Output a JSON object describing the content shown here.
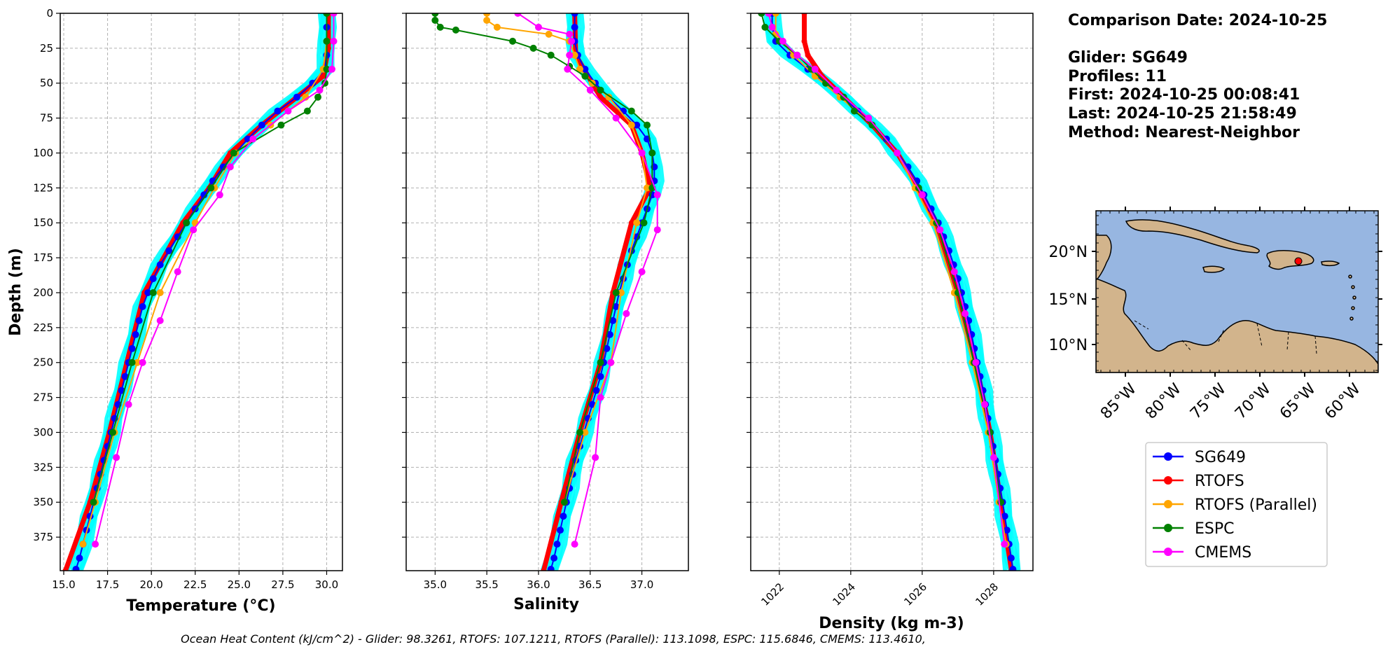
{
  "info": {
    "comparison_date": "Comparison Date: 2024-10-25",
    "glider": "Glider: SG649",
    "profiles": "Profiles: 11",
    "first": "First: 2024-10-25 00:08:41",
    "last": "Last: 2024-10-25 21:58:49",
    "method": "Method: Nearest-Neighbor"
  },
  "footer": "Ocean Heat Content (kJ/cm^2) - Glider: 98.3261,  RTOFS: 107.1211,  RTOFS (Parallel): 113.1098,  ESPC: 115.6846,  CMEMS: 113.4610,",
  "colors": {
    "SG649": "#0000ff",
    "RTOFS": "#ff0000",
    "RTOFS (Parallel)": "#ffa500",
    "ESPC": "#008000",
    "CMEMS": "#ff00ff",
    "raw_profiles": "#00ffff",
    "ocean": "#97b6e1",
    "land": "#d2b48c"
  },
  "legend": [
    "SG649",
    "RTOFS",
    "RTOFS (Parallel)",
    "ESPC",
    "CMEMS"
  ],
  "map": {
    "lat_labels": [
      "20°N",
      "15°N",
      "10°N"
    ],
    "lon_labels": [
      "85°W",
      "80°W",
      "75°W",
      "70°W",
      "65°W",
      "60°W"
    ],
    "glider_position": {
      "lon": -66.9,
      "lat": 18.9
    }
  },
  "chart_data": [
    {
      "type": "line",
      "xlabel": "Temperature (°C)",
      "ylabel": "Depth (m)",
      "xlim": [
        14.8,
        30.9
      ],
      "ylim": [
        399,
        0
      ],
      "grid": true,
      "xticks": [
        "15.0",
        "17.5",
        "20.0",
        "22.5",
        "25.0",
        "27.5",
        "30.0"
      ],
      "yticks": [
        "0",
        "25",
        "50",
        "75",
        "100",
        "125",
        "150",
        "175",
        "200",
        "225",
        "250",
        "275",
        "300",
        "325",
        "350",
        "375"
      ],
      "series": [
        {
          "name": "SG649",
          "depth": [
            0,
            10,
            20,
            30,
            40,
            50,
            60,
            70,
            80,
            90,
            100,
            110,
            120,
            130,
            140,
            150,
            160,
            170,
            180,
            190,
            200,
            210,
            220,
            230,
            240,
            250,
            260,
            270,
            280,
            290,
            300,
            310,
            320,
            330,
            340,
            350,
            360,
            370,
            380,
            390,
            398
          ],
          "values": [
            30.0,
            30.0,
            30.0,
            30.0,
            29.9,
            29.2,
            28.3,
            27.2,
            26.3,
            25.5,
            24.8,
            24.1,
            23.5,
            23.0,
            22.5,
            22.0,
            21.5,
            21.0,
            20.5,
            20.1,
            19.8,
            19.5,
            19.3,
            19.1,
            18.9,
            18.7,
            18.5,
            18.3,
            18.1,
            17.9,
            17.7,
            17.5,
            17.3,
            17.1,
            16.9,
            16.7,
            16.5,
            16.3,
            16.1,
            15.9,
            15.7
          ]
        },
        {
          "name": "RTOFS",
          "depth": [
            0,
            25,
            45,
            60,
            80,
            100,
            125,
            150,
            200,
            250,
            300,
            350,
            399
          ],
          "values": [
            30.1,
            30.1,
            29.8,
            28.3,
            26.3,
            24.5,
            23.3,
            21.8,
            19.6,
            18.6,
            17.6,
            16.5,
            15.1
          ]
        },
        {
          "name": "RTOFS (Parallel)",
          "depth": [
            0,
            20,
            40,
            60,
            80,
            100,
            125,
            150,
            200,
            250,
            300,
            350,
            380
          ],
          "values": [
            30.0,
            30.0,
            29.8,
            28.8,
            26.8,
            24.8,
            23.6,
            22.5,
            20.5,
            19.2,
            17.9,
            16.8,
            16.1
          ]
        },
        {
          "name": "ESPC",
          "depth": [
            0,
            20,
            40,
            50,
            60,
            70,
            80,
            100,
            125,
            150,
            200,
            250,
            300,
            350
          ],
          "values": [
            30.0,
            30.0,
            30.0,
            29.9,
            29.5,
            28.9,
            27.4,
            24.7,
            23.4,
            22.0,
            20.1,
            18.9,
            17.8,
            16.7
          ]
        },
        {
          "name": "CMEMS",
          "depth": [
            0,
            20,
            40,
            55,
            70,
            90,
            110,
            130,
            155,
            185,
            220,
            250,
            280,
            318,
            380
          ],
          "values": [
            30.4,
            30.4,
            30.3,
            29.6,
            27.8,
            25.8,
            24.5,
            23.9,
            22.4,
            21.5,
            20.5,
            19.5,
            18.7,
            18.0,
            16.8
          ]
        }
      ]
    },
    {
      "type": "line",
      "xlabel": "Salinity",
      "xlim": [
        34.72,
        37.45
      ],
      "ylim": [
        399,
        0
      ],
      "grid": true,
      "xticks": [
        "35.0",
        "35.5",
        "36.0",
        "36.5",
        "37.0"
      ],
      "series": [
        {
          "name": "SG649",
          "depth": [
            0,
            10,
            20,
            30,
            40,
            50,
            60,
            70,
            80,
            90,
            100,
            110,
            120,
            130,
            140,
            150,
            160,
            170,
            180,
            190,
            200,
            210,
            220,
            230,
            240,
            250,
            260,
            270,
            280,
            290,
            300,
            310,
            320,
            330,
            340,
            350,
            360,
            370,
            380,
            390,
            398
          ],
          "values": [
            36.35,
            36.35,
            36.35,
            36.38,
            36.45,
            36.55,
            36.68,
            36.82,
            36.95,
            37.05,
            37.1,
            37.12,
            37.12,
            37.1,
            37.05,
            37.0,
            36.95,
            36.9,
            36.86,
            36.82,
            36.78,
            36.75,
            36.72,
            36.69,
            36.66,
            36.63,
            36.6,
            36.56,
            36.52,
            36.48,
            36.44,
            36.4,
            36.36,
            36.33,
            36.3,
            36.27,
            36.24,
            36.21,
            36.18,
            36.15,
            36.12
          ]
        },
        {
          "name": "RTOFS",
          "depth": [
            0,
            30,
            60,
            80,
            100,
            125,
            150,
            200,
            250,
            300,
            350,
            399
          ],
          "values": [
            36.35,
            36.36,
            36.6,
            36.9,
            37.0,
            37.08,
            36.9,
            36.72,
            36.6,
            36.4,
            36.22,
            36.05
          ]
        },
        {
          "name": "RTOFS (Parallel)",
          "depth": [
            0,
            5,
            10,
            15,
            20,
            30,
            40,
            50,
            60,
            80,
            100,
            125,
            150,
            200,
            250,
            300,
            350
          ],
          "values": [
            35.5,
            35.5,
            35.6,
            36.1,
            36.3,
            36.35,
            36.4,
            36.52,
            36.68,
            36.9,
            37.0,
            37.05,
            36.95,
            36.8,
            36.7,
            36.45,
            36.25
          ]
        },
        {
          "name": "ESPC",
          "depth": [
            0,
            5,
            10,
            12,
            20,
            25,
            30,
            38,
            45,
            55,
            70,
            80,
            100,
            125,
            150,
            200,
            250,
            300,
            350
          ],
          "values": [
            35.0,
            35.0,
            35.05,
            35.2,
            35.75,
            35.95,
            36.12,
            36.3,
            36.45,
            36.6,
            36.9,
            37.05,
            37.1,
            37.1,
            37.02,
            36.75,
            36.6,
            36.4,
            36.25
          ]
        },
        {
          "name": "CMEMS",
          "depth": [
            0,
            10,
            15,
            20,
            30,
            40,
            55,
            75,
            100,
            130,
            155,
            185,
            215,
            250,
            275,
            318,
            380
          ],
          "values": [
            35.8,
            36.0,
            36.3,
            36.32,
            36.3,
            36.28,
            36.5,
            36.75,
            37.0,
            37.15,
            37.15,
            37.0,
            36.85,
            36.7,
            36.6,
            36.55,
            36.35
          ]
        }
      ]
    },
    {
      "type": "line",
      "xlabel": "Density (kg m-3)",
      "xlim": [
        1021.2,
        1029.1
      ],
      "ylim": [
        399,
        0
      ],
      "grid": true,
      "xticks": [
        "1022",
        "1024",
        "1026",
        "1028"
      ],
      "series": [
        {
          "name": "SG649",
          "depth": [
            0,
            10,
            20,
            30,
            40,
            50,
            60,
            70,
            80,
            90,
            100,
            110,
            120,
            130,
            140,
            150,
            160,
            170,
            180,
            190,
            200,
            210,
            220,
            230,
            240,
            250,
            260,
            270,
            280,
            290,
            300,
            310,
            320,
            330,
            340,
            350,
            360,
            370,
            380,
            390,
            398
          ],
          "values": [
            1021.8,
            1021.8,
            1021.9,
            1022.3,
            1022.8,
            1023.3,
            1023.8,
            1024.2,
            1024.6,
            1025.0,
            1025.3,
            1025.6,
            1025.85,
            1026.05,
            1026.25,
            1026.45,
            1026.6,
            1026.75,
            1026.88,
            1027.0,
            1027.1,
            1027.2,
            1027.3,
            1027.38,
            1027.46,
            1027.54,
            1027.62,
            1027.7,
            1027.77,
            1027.84,
            1027.91,
            1027.98,
            1028.05,
            1028.12,
            1028.18,
            1028.25,
            1028.31,
            1028.37,
            1028.43,
            1028.49,
            1028.54
          ]
        },
        {
          "name": "RTOFS",
          "depth": [
            0,
            20,
            30,
            45,
            60,
            80,
            100,
            125,
            150,
            200,
            250,
            300,
            350,
            399
          ],
          "values": [
            1022.7,
            1022.7,
            1022.8,
            1023.2,
            1023.8,
            1024.6,
            1025.3,
            1025.9,
            1026.4,
            1027.0,
            1027.5,
            1027.9,
            1028.2,
            1028.5
          ]
        },
        {
          "name": "RTOFS (Parallel)",
          "depth": [
            0,
            15,
            30,
            45,
            60,
            80,
            100,
            125,
            150,
            200,
            250,
            300,
            350,
            380
          ],
          "values": [
            1021.9,
            1021.9,
            1022.4,
            1023.0,
            1023.7,
            1024.6,
            1025.3,
            1025.8,
            1026.3,
            1026.9,
            1027.4,
            1027.85,
            1028.15,
            1028.35
          ]
        },
        {
          "name": "ESPC",
          "depth": [
            0,
            10,
            20,
            30,
            40,
            50,
            60,
            70,
            80,
            100,
            125,
            150,
            200,
            250,
            300,
            350
          ],
          "values": [
            1021.5,
            1021.6,
            1022.0,
            1022.5,
            1022.9,
            1023.3,
            1023.8,
            1024.1,
            1024.6,
            1025.3,
            1025.9,
            1026.4,
            1027.0,
            1027.45,
            1027.9,
            1028.2
          ]
        },
        {
          "name": "CMEMS",
          "depth": [
            0,
            10,
            20,
            30,
            40,
            55,
            75,
            100,
            130,
            155,
            185,
            215,
            250,
            280,
            318,
            380
          ],
          "values": [
            1021.7,
            1021.8,
            1022.1,
            1022.5,
            1023.0,
            1023.6,
            1024.5,
            1025.3,
            1026.0,
            1026.5,
            1026.9,
            1027.2,
            1027.5,
            1027.75,
            1028.0,
            1028.3
          ]
        }
      ]
    }
  ]
}
